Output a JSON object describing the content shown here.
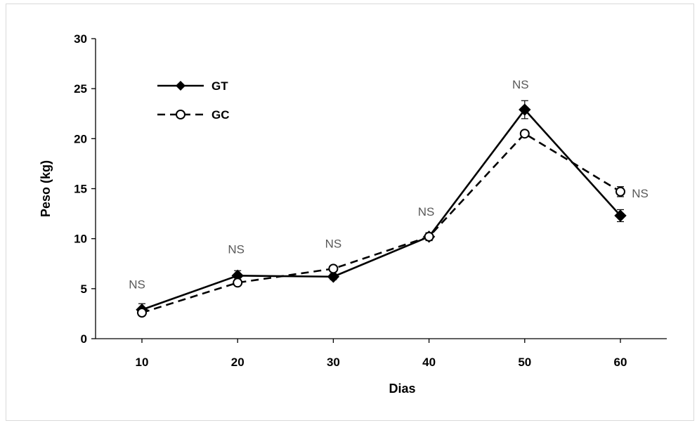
{
  "chart_data": {
    "type": "line",
    "xlabel": "Dias",
    "ylabel": "Peso (kg)",
    "x": [
      10,
      20,
      30,
      40,
      50,
      60
    ],
    "ylim": [
      0,
      30
    ],
    "yticks": [
      0,
      5,
      10,
      15,
      20,
      25,
      30
    ],
    "grid": false,
    "legend_position": "top-left",
    "series": [
      {
        "name": "GT",
        "values": [
          2.9,
          6.3,
          6.2,
          10.2,
          22.9,
          12.3
        ],
        "errors": [
          0.6,
          0.5,
          0.3,
          0.4,
          0.9,
          0.6
        ],
        "marker": "filled-diamond",
        "line": "solid",
        "color": "#000000"
      },
      {
        "name": "GC",
        "values": [
          2.6,
          5.6,
          7.0,
          10.2,
          20.5,
          14.7
        ],
        "errors": [
          0.3,
          0.3,
          0.3,
          0.3,
          0.3,
          0.5
        ],
        "marker": "open-circle",
        "line": "dashed",
        "color": "#000000"
      }
    ],
    "annotations": [
      {
        "x": 10,
        "text": "NS"
      },
      {
        "x": 20,
        "text": "NS"
      },
      {
        "x": 30,
        "text": "NS"
      },
      {
        "x": 40,
        "text": "NS"
      },
      {
        "x": 50,
        "text": "NS"
      },
      {
        "x": 60,
        "text": "NS"
      }
    ]
  }
}
